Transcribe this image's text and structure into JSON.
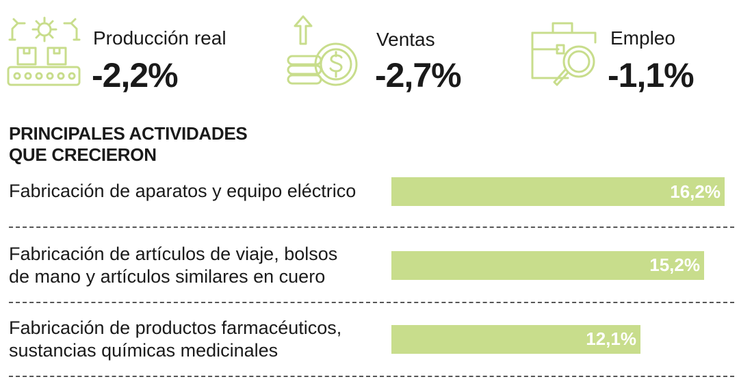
{
  "kpis": [
    {
      "label": "Producción real",
      "value": "-2,2%",
      "icon": "factory-conveyor-icon"
    },
    {
      "label": "Ventas",
      "value": "-2,7%",
      "icon": "coins-dollar-arrow-icon"
    },
    {
      "label": "Empleo",
      "value": "-1,1%",
      "icon": "briefcase-search-icon"
    }
  ],
  "colors": {
    "accent": "#c8dd8c",
    "icon_stroke": "#c8dd8c",
    "text": "#1a1a1a",
    "bar_label_inside": "#ffffff"
  },
  "chart_data": {
    "type": "bar",
    "orientation": "horizontal",
    "title": "PRINCIPALES ACTIVIDADES\nQUE CRECIERON",
    "title_lines": [
      "PRINCIPALES ACTIVIDADES",
      "QUE CRECIERON"
    ],
    "categories": [
      "Fabricación de aparatos y equipo eléctrico",
      "Fabricación de artículos de viaje, bolsos de mano y artículos similares en cuero",
      "Fabricación de productos farmacéuticos, sustancias químicas medicinales"
    ],
    "category_lines": [
      [
        "Fabricación de aparatos y equipo eléctrico"
      ],
      [
        "Fabricación de artículos de viaje, bolsos",
        "de mano y artículos similares en cuero"
      ],
      [
        "Fabricación de productos farmacéuticos,",
        "sustancias químicas medicinales"
      ]
    ],
    "values": [
      16.2,
      15.2,
      12.1
    ],
    "value_labels": [
      "16,2%",
      "15,2%",
      "12,1%"
    ],
    "xlim": [
      0,
      16.2
    ],
    "grid": false
  }
}
